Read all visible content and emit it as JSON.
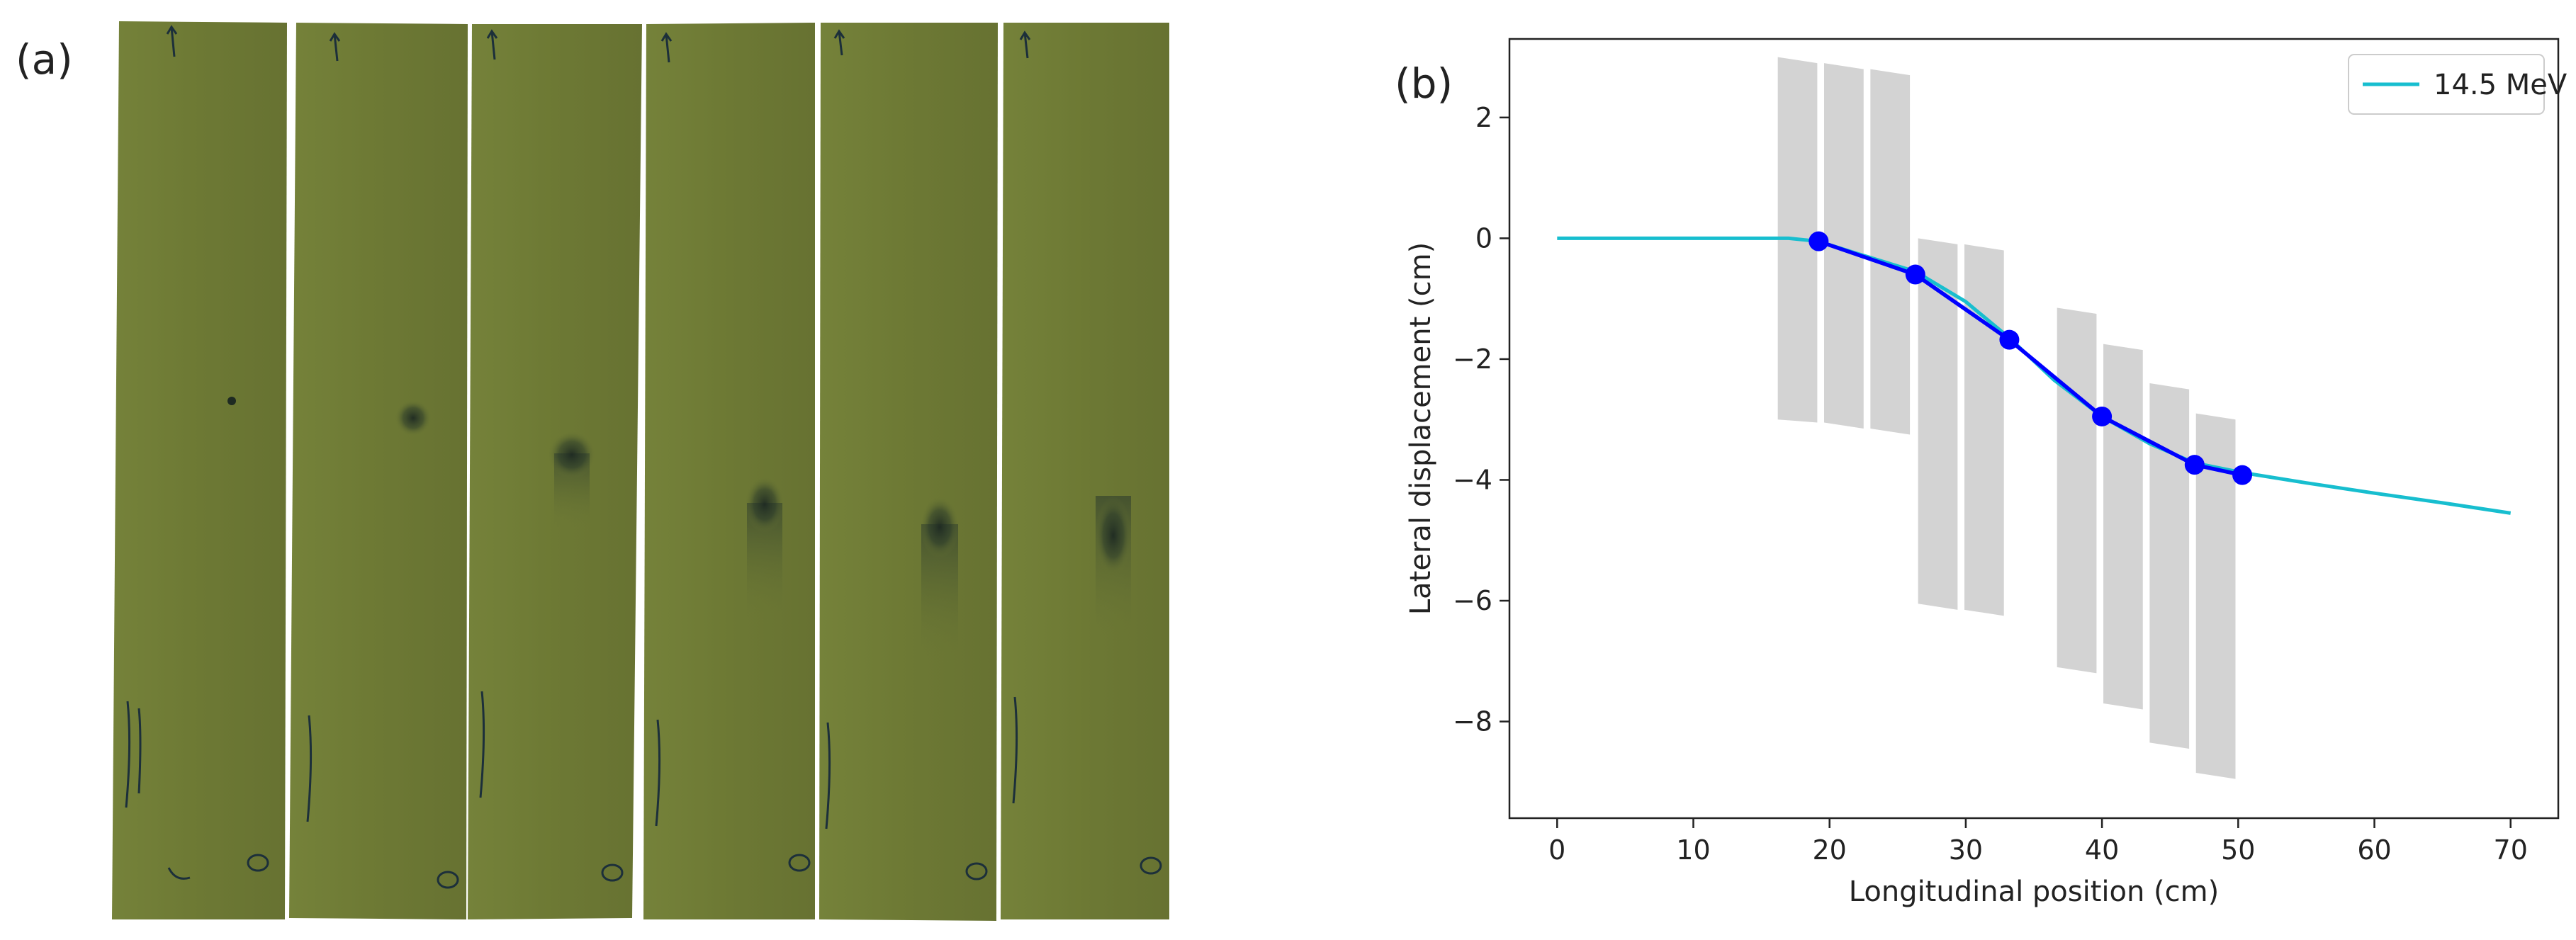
{
  "panel_a": {
    "label": "(a)",
    "film_color": "#6e7a35",
    "spot_color": "#1e2a22"
  },
  "chart_data": {
    "type": "line",
    "panel_label": "(b)",
    "xlabel": "Longitudinal position (cm)",
    "ylabel": "Lateral displacement (cm)",
    "xlim": [
      -3.5,
      73.5
    ],
    "ylim": [
      -9.6,
      3.3
    ],
    "xticks": [
      0,
      10,
      20,
      30,
      40,
      50,
      60,
      70
    ],
    "yticks": [
      -8,
      -6,
      -4,
      -2,
      0,
      2
    ],
    "grid": false,
    "legend_position": "top-right",
    "series": [
      {
        "name": "14.5 MeV",
        "color": "#17becf",
        "x": [
          0,
          5,
          10,
          15,
          17,
          19.2,
          22,
          26.3,
          30,
          33.2,
          36.5,
          40,
          43.5,
          46.8,
          50.3,
          55,
          60,
          65,
          70
        ],
        "y": [
          0,
          0,
          0,
          0,
          0,
          -0.05,
          -0.25,
          -0.55,
          -1.05,
          -1.65,
          -2.35,
          -2.95,
          -3.4,
          -3.72,
          -3.88,
          -4.05,
          -4.22,
          -4.38,
          -4.55
        ]
      },
      {
        "color": "#0000ff",
        "markers": true,
        "x": [
          19.2,
          26.3,
          33.2,
          40.0,
          46.8,
          50.3
        ],
        "y": [
          -0.05,
          -0.6,
          -1.68,
          -2.95,
          -3.75,
          -3.92
        ]
      }
    ],
    "film_blocks": {
      "color": "#d3d3d3",
      "items": [
        {
          "x": [
            16.2,
            19.1
          ],
          "top": [
            3.0,
            2.9
          ],
          "bottom": [
            -3.0,
            -3.05
          ]
        },
        {
          "x": [
            19.6,
            22.5
          ],
          "top": [
            2.9,
            2.8
          ],
          "bottom": [
            -3.05,
            -3.15
          ]
        },
        {
          "x": [
            23.0,
            25.9
          ],
          "top": [
            2.8,
            2.7
          ],
          "bottom": [
            -3.15,
            -3.25
          ]
        },
        {
          "x": [
            26.5,
            29.4
          ],
          "top": [
            0.0,
            -0.1
          ],
          "bottom": [
            -6.05,
            -6.15
          ]
        },
        {
          "x": [
            29.9,
            32.8
          ],
          "top": [
            -0.1,
            -0.2
          ],
          "bottom": [
            -6.15,
            -6.25
          ]
        },
        {
          "x": [
            36.7,
            39.6
          ],
          "top": [
            -1.15,
            -1.25
          ],
          "bottom": [
            -7.1,
            -7.2
          ]
        },
        {
          "x": [
            40.1,
            43.0
          ],
          "top": [
            -1.75,
            -1.85
          ],
          "bottom": [
            -7.7,
            -7.8
          ]
        },
        {
          "x": [
            43.5,
            46.4
          ],
          "top": [
            -2.4,
            -2.5
          ],
          "bottom": [
            -8.35,
            -8.45
          ]
        },
        {
          "x": [
            46.9,
            49.8
          ],
          "top": [
            -2.9,
            -3.0
          ],
          "bottom": [
            -8.85,
            -8.95
          ]
        }
      ]
    }
  }
}
